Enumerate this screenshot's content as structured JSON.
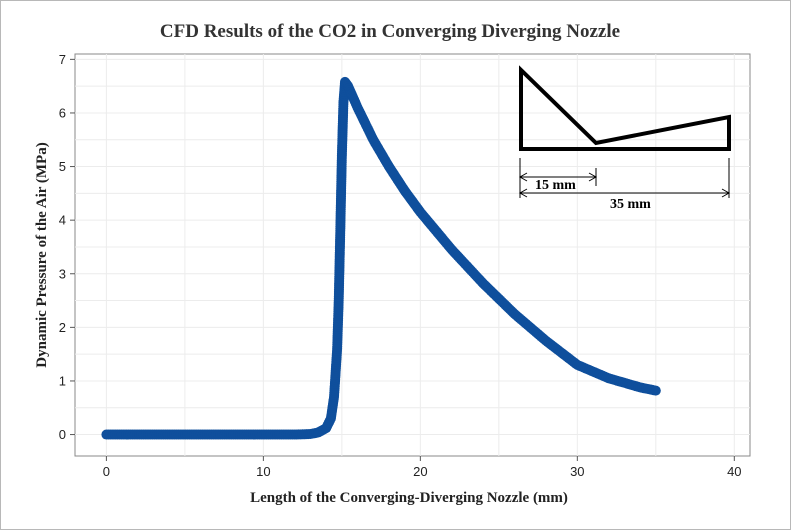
{
  "chart_data": {
    "type": "scatter",
    "title": "CFD Results of the CO2 in Converging Diverging Nozzle",
    "xlabel": "Length of the Converging-Diverging Nozzle (mm)",
    "ylabel": "Dynamic Pressure of the Air (MPa)",
    "xlim": [
      -2,
      41
    ],
    "ylim": [
      -0.4,
      7.1
    ],
    "xticks": [
      0,
      10,
      20,
      30,
      40
    ],
    "yticks": [
      0,
      1,
      2,
      3,
      4,
      5,
      6,
      7
    ],
    "grid": true,
    "marker_color": "#0f4f9c",
    "series": [
      {
        "x": [
          0,
          12,
          13,
          13.5,
          14,
          14.3,
          14.5,
          14.7,
          14.8,
          14.9,
          15.0,
          15.1,
          15.2,
          15.4,
          16,
          17,
          18,
          19,
          20,
          22,
          24,
          26,
          28,
          30,
          32,
          34,
          35
        ],
        "y": [
          0,
          0,
          0.01,
          0.04,
          0.12,
          0.3,
          0.7,
          1.6,
          2.5,
          3.8,
          5.2,
          6.2,
          6.58,
          6.5,
          6.1,
          5.5,
          5.0,
          4.55,
          4.15,
          3.45,
          2.82,
          2.25,
          1.75,
          1.3,
          1.05,
          0.88,
          0.82
        ]
      }
    ],
    "inset": {
      "labels": [
        "15 mm",
        "35 mm"
      ]
    }
  }
}
